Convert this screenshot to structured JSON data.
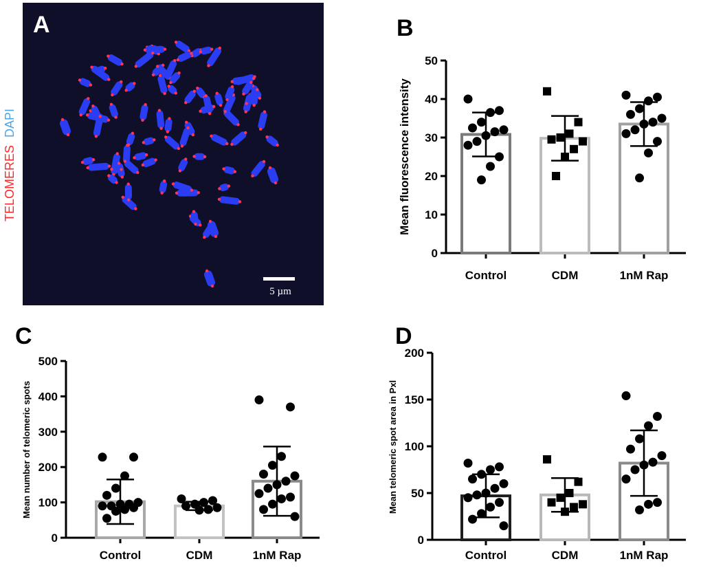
{
  "panel_letters": {
    "a": "A",
    "b": "B",
    "c": "C",
    "d": "D"
  },
  "micrograph": {
    "label_dapi": "DAPI",
    "label_telomeres": "TELOMERES",
    "scale_bar": "5 µm",
    "colors": {
      "background": "#0f0f2a",
      "dapi": "#2a3df2",
      "telomere": "#ff3355",
      "dapi_label": "#49a6e9",
      "telomere_label": "#ff2a2a"
    }
  },
  "chart_data": [
    {
      "id": "B",
      "type": "bar",
      "title": "",
      "xlabel": "",
      "ylabel": "Mean fluorescence intensity",
      "categories": [
        "Control",
        "CDM",
        "1nM Rap"
      ],
      "ylim": [
        0,
        50
      ],
      "yticks": [
        0,
        10,
        20,
        30,
        40,
        50
      ],
      "grid": false,
      "means": [
        30.8,
        29.8,
        33.5
      ],
      "sd": [
        5.7,
        5.8,
        5.7
      ],
      "bar_colors": [
        "#7a7a7a",
        "#bcbcbc",
        "#a0a0a0"
      ],
      "markers": [
        "circle",
        "square",
        "circle"
      ],
      "points": [
        [
          40,
          37,
          36.5,
          34,
          32.5,
          32,
          31.5,
          30.5,
          29,
          28,
          25,
          22.5,
          19
        ],
        [
          42,
          34,
          31,
          30,
          29.5,
          29,
          27,
          25,
          20
        ],
        [
          41,
          40.5,
          39.5,
          37.5,
          36,
          35,
          34,
          33.5,
          32,
          31,
          29,
          26,
          19.5
        ]
      ]
    },
    {
      "id": "C",
      "type": "bar",
      "title": "",
      "xlabel": "",
      "ylabel": "Mean number of telomeric spots",
      "categories": [
        "Control",
        "CDM",
        "1nM Rap"
      ],
      "ylim": [
        0,
        500
      ],
      "yticks": [
        0,
        100,
        200,
        300,
        400,
        500
      ],
      "grid": false,
      "means": [
        102,
        90,
        160
      ],
      "sd": [
        63,
        12,
        98
      ],
      "bar_colors": [
        "#a8a8a8",
        "#c2c2c2",
        "#8a8a8a"
      ],
      "markers": [
        "circle",
        "circle",
        "circle"
      ],
      "points": [
        [
          228,
          228,
          175,
          140,
          120,
          100,
          95,
          95,
          90,
          90,
          85,
          80,
          75,
          55
        ],
        [
          110,
          105,
          100,
          95,
          90,
          85,
          80,
          78
        ],
        [
          390,
          370,
          230,
          205,
          180,
          175,
          160,
          150,
          140,
          125,
          115,
          110,
          95,
          80,
          60
        ]
      ]
    },
    {
      "id": "D",
      "type": "bar",
      "title": "",
      "xlabel": "",
      "ylabel": "Mean telomeric spot area in Pxl",
      "categories": [
        "Control",
        "CDM",
        "1nM Rap"
      ],
      "ylim": [
        0,
        200
      ],
      "yticks": [
        0,
        50,
        100,
        150,
        200
      ],
      "grid": false,
      "means": [
        47,
        48,
        82
      ],
      "sd": [
        23,
        18,
        35
      ],
      "bar_colors": [
        "#1e1e1e",
        "#b8b8b8",
        "#8a8a8a"
      ],
      "markers": [
        "circle",
        "square",
        "circle"
      ],
      "points": [
        [
          82,
          78,
          75,
          70,
          65,
          60,
          55,
          50,
          48,
          45,
          40,
          35,
          28,
          22,
          15
        ],
        [
          86,
          62,
          50,
          45,
          40,
          38,
          35,
          30
        ],
        [
          154,
          132,
          122,
          108,
          97,
          90,
          83,
          80,
          75,
          65,
          40,
          38,
          32
        ]
      ]
    }
  ]
}
